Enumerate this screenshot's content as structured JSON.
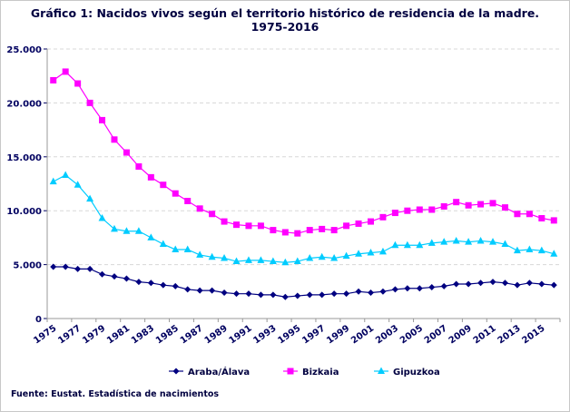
{
  "chart_data": {
    "type": "line",
    "title": "Gráfico 1: Nacidos vivos según el territorio histórico de residencia de la madre.",
    "subtitle": "1975-2016",
    "source": "Fuente: Eustat. Estadística de nacimientos",
    "x": [
      1975,
      1976,
      1977,
      1978,
      1979,
      1980,
      1981,
      1982,
      1983,
      1984,
      1985,
      1986,
      1987,
      1988,
      1989,
      1990,
      1991,
      1992,
      1993,
      1994,
      1995,
      1996,
      1997,
      1998,
      1999,
      2000,
      2001,
      2002,
      2003,
      2004,
      2005,
      2006,
      2007,
      2008,
      2009,
      2010,
      2011,
      2012,
      2013,
      2014,
      2015,
      2016
    ],
    "x_tick_labels": [
      "1975",
      "1977",
      "1979",
      "1981",
      "1983",
      "1985",
      "1987",
      "1989",
      "1991",
      "1993",
      "1995",
      "1997",
      "1999",
      "2001",
      "2003",
      "2005",
      "2007",
      "2009",
      "2011",
      "2013",
      "2015"
    ],
    "y_tick_labels": [
      "0",
      "5.000",
      "10.000",
      "15.000",
      "20.000",
      "25.000"
    ],
    "ylim": [
      0,
      25000
    ],
    "grid": "horizontal dashed",
    "legend": "bottom",
    "series": [
      {
        "name": "Araba/Álava",
        "color": "#000080",
        "marker": "diamond",
        "values": [
          4800,
          4800,
          4600,
          4600,
          4100,
          3900,
          3700,
          3400,
          3300,
          3100,
          3000,
          2700,
          2600,
          2600,
          2400,
          2300,
          2300,
          2200,
          2200,
          2000,
          2100,
          2200,
          2200,
          2300,
          2300,
          2500,
          2400,
          2500,
          2700,
          2800,
          2800,
          2900,
          3000,
          3200,
          3200,
          3300,
          3400,
          3300,
          3100,
          3300,
          3200,
          3100
        ]
      },
      {
        "name": "Bizkaia",
        "color": "#FF00FF",
        "marker": "square",
        "values": [
          22100,
          22900,
          21800,
          20000,
          18400,
          16600,
          15400,
          14100,
          13100,
          12400,
          11600,
          10900,
          10200,
          9700,
          9000,
          8700,
          8600,
          8600,
          8200,
          8000,
          7900,
          8200,
          8300,
          8200,
          8600,
          8800,
          9000,
          9400,
          9800,
          10000,
          10100,
          10100,
          10400,
          10800,
          10500,
          10600,
          10700,
          10300,
          9700,
          9700,
          9300,
          9100
        ]
      },
      {
        "name": "Gipuzkoa",
        "color": "#00CCFF",
        "marker": "triangle",
        "values": [
          12700,
          13300,
          12400,
          11100,
          9300,
          8300,
          8100,
          8100,
          7500,
          6900,
          6400,
          6400,
          5900,
          5700,
          5600,
          5300,
          5400,
          5400,
          5300,
          5200,
          5300,
          5600,
          5700,
          5600,
          5800,
          6000,
          6100,
          6200,
          6800,
          6800,
          6800,
          7000,
          7100,
          7200,
          7100,
          7200,
          7100,
          6900,
          6300,
          6400,
          6300,
          6000
        ]
      }
    ]
  }
}
